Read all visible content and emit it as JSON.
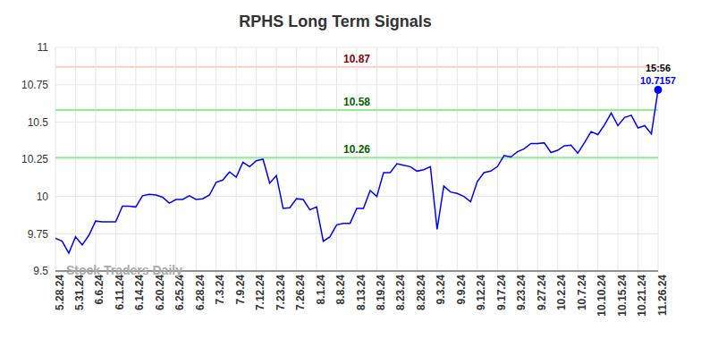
{
  "chart_data": {
    "type": "line",
    "title": "RPHS Long Term Signals",
    "categories": [
      "5.28.24",
      null,
      null,
      "5.31.24",
      null,
      null,
      "6.6.24",
      null,
      null,
      "6.11.24",
      null,
      null,
      "6.14.24",
      null,
      null,
      "6.20.24",
      null,
      null,
      "6.25.24",
      null,
      null,
      "6.28.24",
      null,
      null,
      "7.3.24",
      null,
      null,
      "7.9.24",
      null,
      null,
      "7.12.24",
      null,
      null,
      "7.23.24",
      null,
      null,
      "7.26.24",
      null,
      null,
      "8.1.24",
      null,
      null,
      "8.8.24",
      null,
      null,
      "8.13.24",
      null,
      null,
      "8.19.24",
      null,
      null,
      "8.23.24",
      null,
      null,
      "8.28.24",
      null,
      null,
      "9.3.24",
      null,
      null,
      "9.9.24",
      null,
      null,
      "9.12.24",
      null,
      null,
      "9.17.24",
      null,
      null,
      "9.23.24",
      null,
      null,
      "9.27.24",
      null,
      null,
      "10.2.24",
      null,
      null,
      "10.7.24",
      null,
      null,
      "10.10.24",
      null,
      null,
      "10.15.24",
      null,
      null,
      "10.21.24",
      null,
      null,
      "11.26.24"
    ],
    "values": [
      9.72,
      9.7,
      9.62,
      9.73,
      9.675,
      9.74,
      9.835,
      9.83,
      9.83,
      9.83,
      9.935,
      9.935,
      9.93,
      10.005,
      10.015,
      10.01,
      9.995,
      9.955,
      9.98,
      9.98,
      10.005,
      9.98,
      9.985,
      10.01,
      10.095,
      10.11,
      10.165,
      10.13,
      10.23,
      10.2,
      10.24,
      10.25,
      10.09,
      10.14,
      9.92,
      9.925,
      9.985,
      9.98,
      9.91,
      9.93,
      9.7,
      9.73,
      9.81,
      9.82,
      9.82,
      9.92,
      9.92,
      10.04,
      10.0,
      10.16,
      10.16,
      10.22,
      10.21,
      10.2,
      10.17,
      10.18,
      10.2,
      9.78,
      10.07,
      10.03,
      10.02,
      10.0,
      9.965,
      10.1,
      10.16,
      10.17,
      10.2,
      10.275,
      10.265,
      10.3,
      10.32,
      10.355,
      10.355,
      10.36,
      10.295,
      10.31,
      10.34,
      10.345,
      10.29,
      10.36,
      10.435,
      10.415,
      10.48,
      10.56,
      10.475,
      10.53,
      10.545,
      10.46,
      10.475,
      10.42,
      10.7157
    ],
    "color": "#0000ff",
    "ylim": [
      9.5,
      11
    ],
    "yticks": [
      9.5,
      9.75,
      10,
      10.25,
      10.5,
      10.75,
      11
    ],
    "grid": true,
    "horizontal_lines": [
      {
        "value": 10.87,
        "label": "10.87",
        "color": "#ffcccc",
        "label_color": "#8b0000"
      },
      {
        "value": 10.58,
        "label": "10.58",
        "color": "#90ee90",
        "label_color": "#006400"
      },
      {
        "value": 10.26,
        "label": "10.26",
        "color": "#90ee90",
        "label_color": "#006400"
      }
    ],
    "last_point": {
      "time": "15:56",
      "value_label": "10.7157"
    },
    "watermark": "Stock Traders Daily"
  }
}
